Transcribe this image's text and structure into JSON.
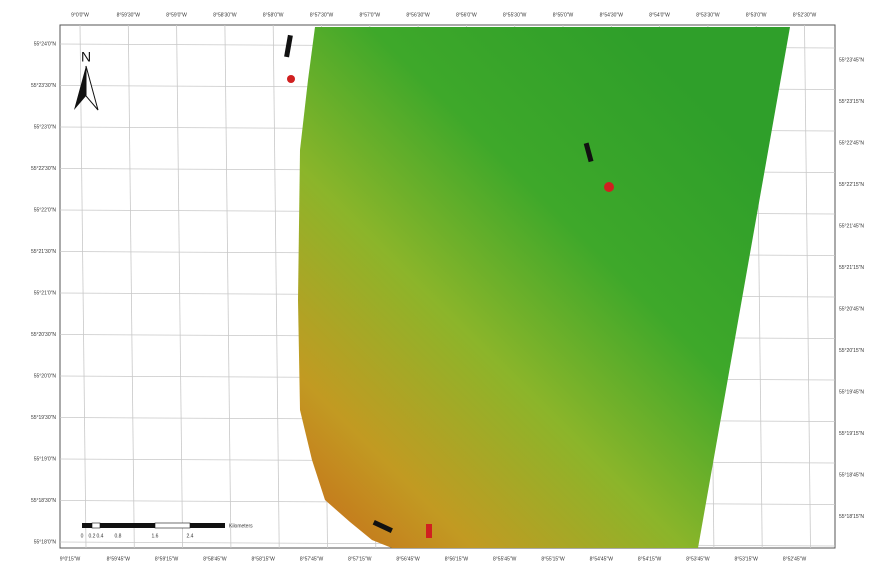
{
  "north_label": "N",
  "top_labels": [
    "9°0'0\"W",
    "8°59'30\"W",
    "8°59'0\"W",
    "8°58'30\"W",
    "8°58'0\"W",
    "8°57'30\"W",
    "8°57'0\"W",
    "8°56'30\"W",
    "8°56'0\"W",
    "8°55'30\"W",
    "8°55'0\"W",
    "8°54'30\"W",
    "8°54'0\"W",
    "8°53'30\"W",
    "8°53'0\"W",
    "8°52'30\"W"
  ],
  "bottom_labels": [
    "9°0'15\"W",
    "8°59'45\"W",
    "8°59'15\"W",
    "8°58'45\"W",
    "8°58'15\"W",
    "8°57'45\"W",
    "8°57'15\"W",
    "8°56'45\"W",
    "8°56'15\"W",
    "8°55'45\"W",
    "8°55'15\"W",
    "8°54'45\"W",
    "8°54'15\"W",
    "8°53'45\"W",
    "8°53'15\"W",
    "8°52'45\"W"
  ],
  "left_labels": [
    "55°24'0\"N",
    "55°23'30\"N",
    "55°23'0\"N",
    "55°22'30\"N",
    "55°22'0\"N",
    "55°21'30\"N",
    "55°21'0\"N",
    "55°20'30\"N",
    "55°20'0\"N",
    "55°19'30\"N",
    "55°19'0\"N",
    "55°18'30\"N",
    "55°18'0\"N"
  ],
  "right_labels": [
    "55°23'45\"N",
    "55°23'15\"N",
    "55°22'45\"N",
    "55°22'15\"N",
    "55°21'45\"N",
    "55°21'15\"N",
    "55°20'45\"N",
    "55°20'15\"N",
    "55°19'45\"N",
    "55°19'15\"N",
    "55°18'45\"N",
    "55°18'15\"N"
  ],
  "scale_labels": [
    "0",
    "0.2",
    "0.4",
    "0.8",
    "1.6",
    "2.4"
  ],
  "scale_unit": "Kilometers"
}
